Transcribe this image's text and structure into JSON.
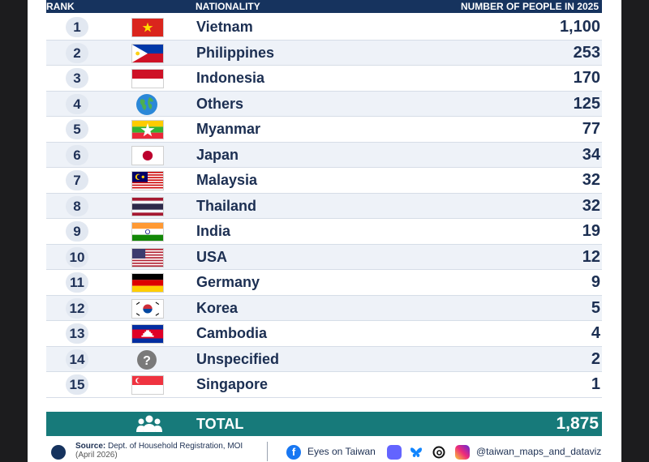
{
  "header": {
    "rank": "RANK",
    "nationality": "NATIONALITY",
    "count": "NUMBER OF PEOPLE IN 2025"
  },
  "chart_data": {
    "type": "table",
    "columns": [
      "RANK",
      "NATIONALITY",
      "NUMBER OF PEOPLE IN 2025"
    ],
    "rows": [
      {
        "rank": "1",
        "nationality": "Vietnam",
        "count": "1,100",
        "flag": "vietnam-flag"
      },
      {
        "rank": "2",
        "nationality": "Philippines",
        "count": "253",
        "flag": "philippines-flag"
      },
      {
        "rank": "3",
        "nationality": "Indonesia",
        "count": "170",
        "flag": "indonesia-flag"
      },
      {
        "rank": "4",
        "nationality": "Others",
        "count": "125",
        "flag": "globe-icon"
      },
      {
        "rank": "5",
        "nationality": "Myanmar",
        "count": "77",
        "flag": "myanmar-flag"
      },
      {
        "rank": "6",
        "nationality": "Japan",
        "count": "34",
        "flag": "japan-flag"
      },
      {
        "rank": "7",
        "nationality": "Malaysia",
        "count": "32",
        "flag": "malaysia-flag"
      },
      {
        "rank": "8",
        "nationality": "Thailand",
        "count": "32",
        "flag": "thailand-flag"
      },
      {
        "rank": "9",
        "nationality": "India",
        "count": "19",
        "flag": "india-flag"
      },
      {
        "rank": "10",
        "nationality": "USA",
        "count": "12",
        "flag": "usa-flag"
      },
      {
        "rank": "11",
        "nationality": "Germany",
        "count": "9",
        "flag": "germany-flag"
      },
      {
        "rank": "12",
        "nationality": "Korea",
        "count": "5",
        "flag": "korea-flag"
      },
      {
        "rank": "13",
        "nationality": "Cambodia",
        "count": "4",
        "flag": "cambodia-flag"
      },
      {
        "rank": "14",
        "nationality": "Unspecified",
        "count": "2",
        "flag": "question-icon"
      },
      {
        "rank": "15",
        "nationality": "Singapore",
        "count": "1",
        "flag": "singapore-flag"
      }
    ],
    "total": {
      "label": "TOTAL",
      "value": "1,875"
    }
  },
  "footer": {
    "source_label": "Source:",
    "source_text": "Dept. of Household Registration, MOI",
    "source_date": "(April 2026)",
    "facebook": "Eyes on Taiwan",
    "instagram": "@taiwan_maps_and_dataviz"
  },
  "colors": {
    "header_bg": "#16335e",
    "total_bg": "#177a7a",
    "text": "#1c2f52"
  }
}
